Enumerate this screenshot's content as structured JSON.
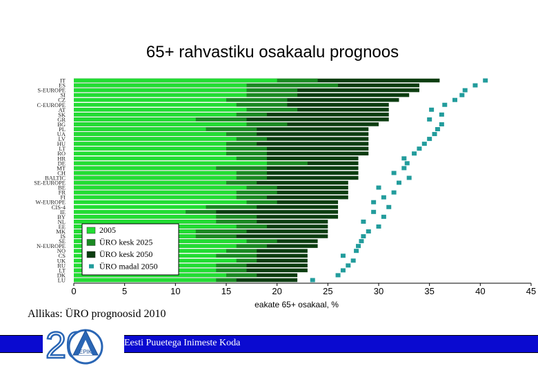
{
  "title": "65+ rahvastiku osakaalu prognoos",
  "source": "Allikas: ÜRO prognoosid 2010",
  "footer": {
    "org_name": "Eesti Puuetega Inimeste Koda",
    "logo_number": "20",
    "logo_text": "EPIK"
  },
  "colors": {
    "s2005": "#22dd33",
    "kesk2025": "#1a8a22",
    "kesk2050": "#0c3d10",
    "madal2050": "#229c9c",
    "footer_bar": "#0a0ad0"
  },
  "chart_data": {
    "type": "bar",
    "orientation": "horizontal",
    "xlabel": "eakate 65+ osakaal, %",
    "ylabel": "",
    "xlim": [
      0,
      45
    ],
    "xticks": [
      0,
      5,
      10,
      15,
      20,
      25,
      30,
      35,
      40,
      45
    ],
    "categories": [
      "IT",
      "ES",
      "S-EUROPE",
      "SI",
      "CZ",
      "C-EUROPE",
      "AT",
      "SK",
      "GR",
      "BG",
      "PL",
      "UA",
      "LV",
      "HU",
      "LT",
      "RO",
      "HR",
      "DE",
      "MT",
      "CH",
      "BALTIC",
      "SE-EUROPE",
      "BE",
      "FR",
      "FI",
      "W-EUROPE",
      "CIS-4",
      "IE",
      "BY",
      "NL",
      "EE",
      "MK",
      "IS",
      "SE",
      "N-EUROPE",
      "NO",
      "CS",
      "UK",
      "RU",
      "LT",
      "DK",
      "LU"
    ],
    "series": [
      {
        "name": "2005",
        "values": [
          20,
          17,
          17,
          17,
          15,
          16,
          17,
          16,
          12,
          17,
          13,
          15,
          16,
          15,
          15,
          15,
          16,
          19,
          14,
          16,
          16,
          15,
          17,
          16,
          16,
          17,
          13,
          11,
          14,
          14,
          16,
          12,
          12,
          17,
          16,
          15,
          14,
          16,
          14,
          14,
          15,
          14
        ]
      },
      {
        "name": "ÜRO kesk 2025",
        "values": [
          24,
          26,
          22,
          22,
          21,
          21,
          22,
          19,
          17,
          21,
          18,
          18,
          19,
          18,
          19,
          19,
          19,
          23,
          19,
          19,
          19,
          18,
          20,
          20,
          19,
          20,
          18,
          14,
          18,
          18,
          19,
          17,
          16,
          20,
          19,
          18,
          18,
          18,
          17,
          17,
          18,
          16
        ]
      },
      {
        "name": "ÜRO kesk 2050",
        "values": [
          36,
          34,
          34,
          33,
          32,
          31,
          31,
          31,
          31,
          30,
          29,
          29,
          29,
          29,
          29,
          29,
          28,
          28,
          28,
          28,
          28,
          27,
          27,
          27,
          27,
          26,
          26,
          26,
          26,
          25,
          25,
          25,
          25,
          24,
          24,
          23,
          23,
          23,
          23,
          23,
          22,
          22
        ]
      },
      {
        "name": "ÜRO madal 2050",
        "values": [
          40.5,
          39.5,
          38.5,
          38.2,
          37.5,
          36.5,
          35.2,
          36.2,
          35.0,
          36.2,
          35.8,
          35.5,
          35.0,
          34.5,
          34.0,
          33.5,
          32.5,
          32.8,
          32.5,
          31.5,
          33.0,
          32.0,
          30.0,
          31.5,
          30.5,
          29.5,
          31.0,
          29.5,
          30.5,
          28.5,
          30.0,
          29.0,
          28.5,
          28.3,
          28.0,
          27.8,
          26.5,
          27.5,
          27.0,
          26.5,
          26.0,
          23.5
        ]
      }
    ],
    "legend": {
      "position": "bottom-left-inside",
      "entries": [
        "2005",
        "ÜRO kesk 2025",
        "ÜRO kesk 2050",
        "ÜRO madal 2050"
      ]
    },
    "grid": false
  }
}
